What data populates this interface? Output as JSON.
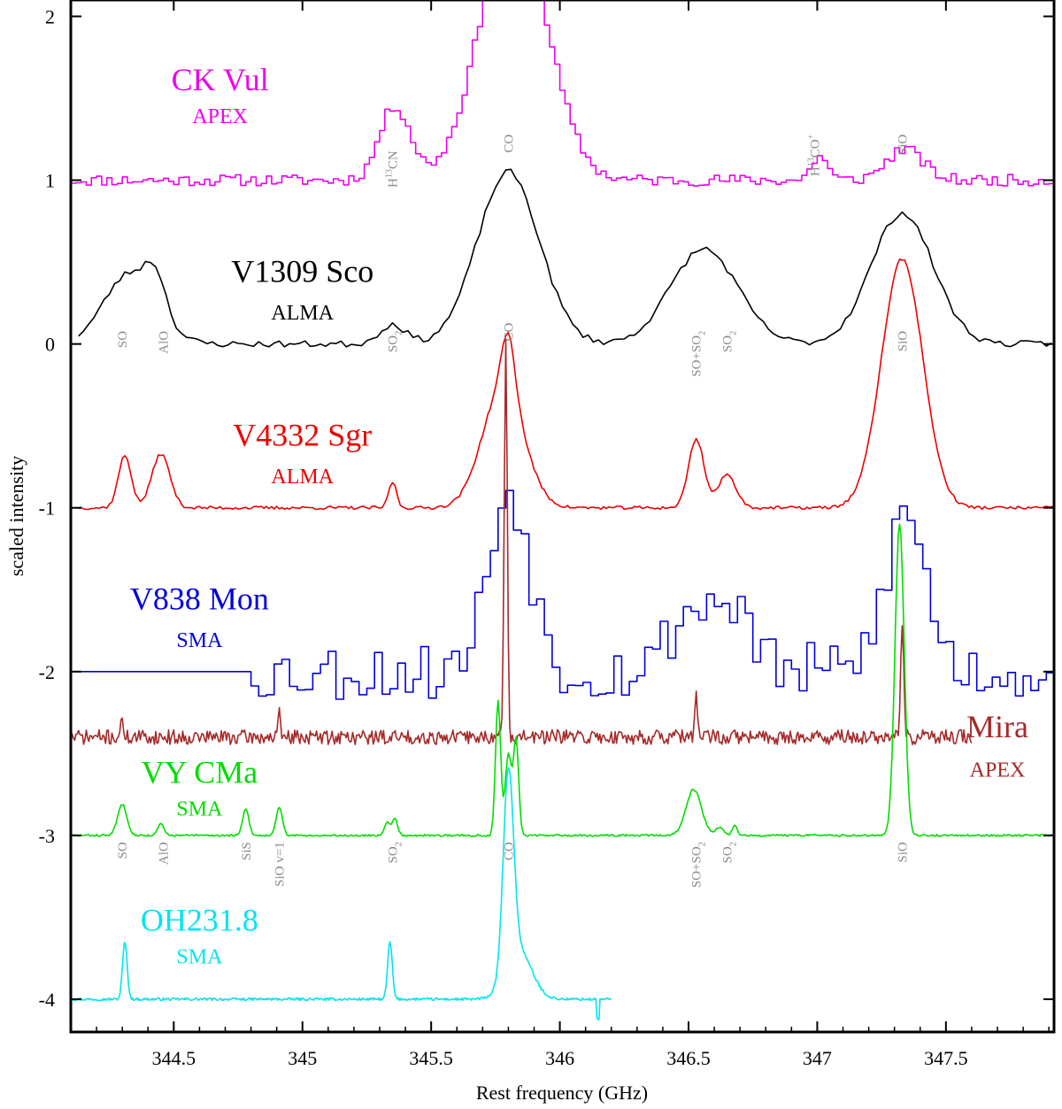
{
  "chart_data": {
    "type": "line",
    "title": "",
    "xlabel": "Rest frequency (GHz)",
    "ylabel": "scaled intensity",
    "xlim": [
      344.1,
      347.92
    ],
    "ylim": [
      -4.2,
      2.1
    ],
    "xticks": [
      344.5,
      345,
      345.5,
      346,
      346.5,
      347,
      347.5
    ],
    "xtick_labels": [
      "344.5",
      "345",
      "345.5",
      "346",
      "346.5",
      "347",
      "347.5"
    ],
    "yticks": [
      -4,
      -3,
      -2,
      -1,
      0,
      1,
      2
    ],
    "ytick_labels": [
      "-4",
      "-3",
      "-2",
      "-1",
      "0",
      "1",
      "2"
    ],
    "grid": false,
    "series": [
      {
        "name": "CK Vul",
        "telescope": "APEX",
        "color": "#ee00ee",
        "style": "step",
        "offset": 1.0,
        "x_range": [
          344.1,
          347.92
        ],
        "step": 0.02,
        "noise": 0.035,
        "seed": 11,
        "lines": [
          {
            "f": 345.35,
            "a": 0.45,
            "w": 0.06
          },
          {
            "f": 345.81,
            "a": 1.6,
            "w": 0.13
          },
          {
            "f": 347.0,
            "a": 0.15,
            "w": 0.03
          },
          {
            "f": 347.33,
            "a": 0.19,
            "w": 0.07
          }
        ],
        "clip_top": 2.1
      },
      {
        "name": "V1309 Sco",
        "telescope": "ALMA",
        "color": "#000000",
        "style": "line",
        "offset": 0.0,
        "x_range": [
          344.13,
          347.92
        ],
        "step": 0.02,
        "noise": 0.02,
        "seed": 23,
        "lines": [
          {
            "f": 344.33,
            "a": 0.43,
            "w": 0.1
          },
          {
            "f": 344.43,
            "a": 0.22,
            "w": 0.04
          },
          {
            "f": 345.35,
            "a": 0.12,
            "w": 0.05
          },
          {
            "f": 345.8,
            "a": 1.05,
            "w": 0.12
          },
          {
            "f": 346.56,
            "a": 0.58,
            "w": 0.13
          },
          {
            "f": 347.33,
            "a": 0.8,
            "w": 0.12
          }
        ]
      },
      {
        "name": "V4332 Sgr",
        "telescope": "ALMA",
        "color": "#ee0000",
        "style": "line",
        "offset": -1.0,
        "x_range": [
          344.13,
          347.92
        ],
        "step": 0.01,
        "noise": 0.01,
        "seed": 37,
        "lines": [
          {
            "f": 344.31,
            "a": 0.32,
            "w": 0.025
          },
          {
            "f": 344.45,
            "a": 0.33,
            "w": 0.035
          },
          {
            "f": 345.35,
            "a": 0.16,
            "w": 0.015
          },
          {
            "f": 345.78,
            "a": 0.74,
            "w": 0.08
          },
          {
            "f": 345.8,
            "a": 0.35,
            "w": 0.025
          },
          {
            "f": 346.53,
            "a": 0.42,
            "w": 0.03
          },
          {
            "f": 346.65,
            "a": 0.2,
            "w": 0.035
          },
          {
            "f": 347.33,
            "a": 1.52,
            "w": 0.08
          }
        ]
      },
      {
        "name": "V838 Mon",
        "telescope": "SMA",
        "color": "#0000dd",
        "style": "step",
        "offset": -2.0,
        "x_range": [
          344.8,
          347.92
        ],
        "step": 0.03,
        "noise": 0.18,
        "seed": 53,
        "flat_from": 344.1,
        "flat_to": 344.8,
        "lines": [
          {
            "f": 345.79,
            "a": 1.1,
            "w": 0.08
          },
          {
            "f": 346.52,
            "a": 0.4,
            "w": 0.1
          },
          {
            "f": 346.68,
            "a": 0.3,
            "w": 0.06
          },
          {
            "f": 347.33,
            "a": 0.95,
            "w": 0.08
          }
        ]
      },
      {
        "name": "Mira",
        "telescope": "APEX",
        "color": "#a52a2a",
        "style": "line",
        "offset": -2.4,
        "x_range": [
          344.1,
          347.6
        ],
        "step": 0.005,
        "noise": 0.045,
        "seed": 71,
        "lines": [
          {
            "f": 344.3,
            "a": 0.14,
            "w": 0.004
          },
          {
            "f": 344.91,
            "a": 0.14,
            "w": 0.004
          },
          {
            "f": 345.79,
            "a": 2.4,
            "w": 0.006
          },
          {
            "f": 346.53,
            "a": 0.26,
            "w": 0.005
          },
          {
            "f": 347.33,
            "a": 0.66,
            "w": 0.006
          }
        ]
      },
      {
        "name": "VY CMa",
        "telescope": "SMA",
        "color": "#00dd00",
        "style": "line",
        "offset": -3.0,
        "x_range": [
          344.1,
          347.92
        ],
        "step": 0.005,
        "noise": 0.006,
        "seed": 83,
        "lines": [
          {
            "f": 344.3,
            "a": 0.19,
            "w": 0.018
          },
          {
            "f": 344.45,
            "a": 0.07,
            "w": 0.012
          },
          {
            "f": 344.78,
            "a": 0.16,
            "w": 0.012
          },
          {
            "f": 344.91,
            "a": 0.17,
            "w": 0.012
          },
          {
            "f": 345.33,
            "a": 0.08,
            "w": 0.012
          },
          {
            "f": 345.36,
            "a": 0.1,
            "w": 0.01
          },
          {
            "f": 345.76,
            "a": 0.82,
            "w": 0.01
          },
          {
            "f": 345.8,
            "a": 0.5,
            "w": 0.012
          },
          {
            "f": 345.83,
            "a": 0.58,
            "w": 0.01
          },
          {
            "f": 346.52,
            "a": 0.28,
            "w": 0.03
          },
          {
            "f": 346.62,
            "a": 0.05,
            "w": 0.015
          },
          {
            "f": 346.68,
            "a": 0.06,
            "w": 0.01
          },
          {
            "f": 347.32,
            "a": 1.9,
            "w": 0.018
          }
        ]
      },
      {
        "name": "OH231.8",
        "telescope": "SMA",
        "color": "#00e5ee",
        "style": "line",
        "offset": -4.0,
        "x_range": [
          344.1,
          346.2
        ],
        "step": 0.004,
        "noise": 0.008,
        "seed": 97,
        "lines": [
          {
            "f": 344.31,
            "a": 0.35,
            "w": 0.009
          },
          {
            "f": 345.34,
            "a": 0.35,
            "w": 0.009
          },
          {
            "f": 345.8,
            "a": 1.2,
            "w": 0.02
          },
          {
            "f": 345.84,
            "a": 0.3,
            "w": 0.05
          }
        ],
        "dip": {
          "f": 346.15,
          "a": -0.12
        }
      }
    ],
    "annotations": [
      {
        "text": "H13CN",
        "base": "H",
        "sup": "13",
        "rest": "CN",
        "x": 345.35,
        "y": 1.18
      },
      {
        "text": "CO",
        "x": 345.8,
        "y": 1.28
      },
      {
        "text": "H13CO+",
        "base": "H",
        "sup": "13",
        "rest": "CO",
        "sup2": "+",
        "x": 346.99,
        "y": 1.28
      },
      {
        "text": "SiO",
        "x": 347.33,
        "y": 1.28
      },
      {
        "text": "SO",
        "x": 344.3,
        "y": 0.08
      },
      {
        "text": "AlO",
        "x": 344.46,
        "y": 0.08
      },
      {
        "text": "SO2",
        "base": "SO",
        "sub": "2",
        "x": 345.35,
        "y": 0.08
      },
      {
        "text": "CO",
        "x": 345.8,
        "y": 0.13
      },
      {
        "text": "SO+SO2",
        "base": "SO+SO",
        "sub": "2",
        "x": 346.53,
        "y": 0.08
      },
      {
        "text": "SO2",
        "base": "SO",
        "sub": "2",
        "x": 346.65,
        "y": 0.08
      },
      {
        "text": "SiO",
        "x": 347.33,
        "y": 0.08
      },
      {
        "text": "SO",
        "x": 344.3,
        "y": -3.04
      },
      {
        "text": "AlO",
        "x": 344.46,
        "y": -3.04
      },
      {
        "text": "SiS",
        "x": 344.78,
        "y": -3.04
      },
      {
        "text": "SiO v=1",
        "x": 344.91,
        "y": -3.04
      },
      {
        "text": "SO2",
        "base": "SO",
        "sub": "2",
        "x": 345.35,
        "y": -3.04
      },
      {
        "text": "CO",
        "x": 345.8,
        "y": -3.04
      },
      {
        "text": "SO+SO2",
        "base": "SO+SO",
        "sub": "2",
        "x": 346.53,
        "y": -3.04
      },
      {
        "text": "SO2",
        "base": "SO",
        "sub": "2",
        "x": 346.65,
        "y": -3.04
      },
      {
        "text": "SiO",
        "x": 347.33,
        "y": -3.04
      }
    ],
    "object_labels": [
      {
        "name": "CK Vul",
        "telescope": "APEX",
        "color": "#ee00ee",
        "x": 344.68,
        "y": 1.55,
        "tel_y": 1.35
      },
      {
        "name": "V1309 Sco",
        "telescope": "ALMA",
        "color": "#000000",
        "x": 345.0,
        "y": 0.38,
        "tel_y": 0.15
      },
      {
        "name": "V4332 Sgr",
        "telescope": "ALMA",
        "color": "#ee0000",
        "x": 345.0,
        "y": -0.62,
        "tel_y": -0.85
      },
      {
        "name": "V838 Mon",
        "telescope": "SMA",
        "color": "#0000dd",
        "x": 344.6,
        "y": -1.62,
        "tel_y": -1.85
      },
      {
        "name": "Mira",
        "telescope": "APEX",
        "color": "#a52a2a",
        "x": 347.7,
        "y": -2.4,
        "tel_y": -2.64
      },
      {
        "name": "VY CMa",
        "telescope": "SMA",
        "color": "#00dd00",
        "x": 344.6,
        "y": -2.68,
        "tel_y": -2.88
      },
      {
        "name": "OH231.8",
        "telescope": "SMA",
        "color": "#00e5ee",
        "x": 344.6,
        "y": -3.58,
        "tel_y": -3.78
      }
    ]
  }
}
